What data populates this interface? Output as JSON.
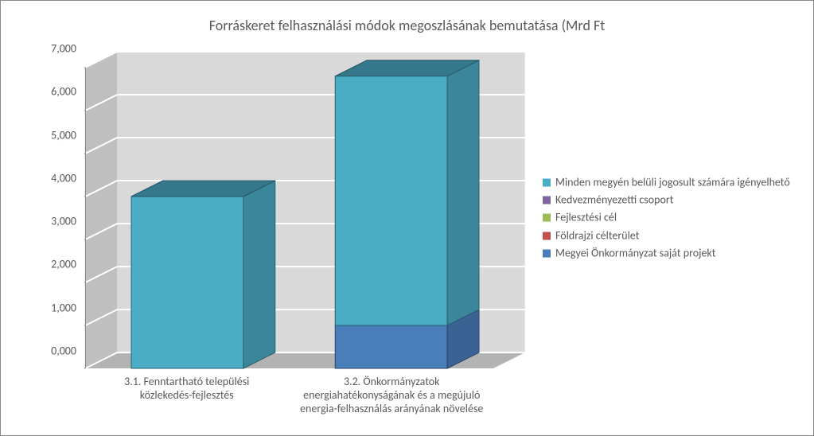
{
  "title": "Forráskeret felhasználási módok megoszlásának bemutatása (Mrd Ft",
  "title_fontsize": 18,
  "title_color": "#595959",
  "chart": {
    "type": "stacked-bar-3d",
    "categories": [
      "3.1. Fenntartható települési közlekedés-fejlesztés",
      "3.2. Önkormányzatok energiahatékonyságának és a megújuló energia-felhasználás arányának növelése"
    ],
    "series": [
      {
        "name": "Megyei Önkormányzat saját projekt",
        "color": "#4a7ebb",
        "values": [
          0.0,
          1.0
        ]
      },
      {
        "name": "Földrajzi célterület",
        "color": "#c0504d",
        "values": [
          0.0,
          0.0
        ]
      },
      {
        "name": "Fejlesztési cél",
        "color": "#9bbb59",
        "values": [
          0.0,
          0.0
        ]
      },
      {
        "name": "Kedvezményezetti csoport",
        "color": "#8064a2",
        "values": [
          0.0,
          0.0
        ]
      },
      {
        "name": "Minden megyén belüli jogosult számára igényelhető",
        "color": "#4bacc6",
        "values": [
          4.0,
          5.8
        ]
      }
    ],
    "ylim": [
      0,
      7
    ],
    "ytick_step": 1,
    "ytick_decimals": 3,
    "yticks": [
      "0,000",
      "1,000",
      "2,000",
      "3,000",
      "4,000",
      "5,000",
      "6,000",
      "7,000"
    ],
    "label_fontsize": 14,
    "label_color": "#595959",
    "background_color": "#ffffff",
    "wall_color": "#d9d9d9",
    "grid_color": "#ffffff",
    "floor_color": "#b3b3b3",
    "bar_width_ratio": 0.55,
    "depth_dx": 40,
    "depth_dy": 20
  },
  "legend_order_top_to_bottom": [
    4,
    3,
    2,
    1,
    0
  ]
}
